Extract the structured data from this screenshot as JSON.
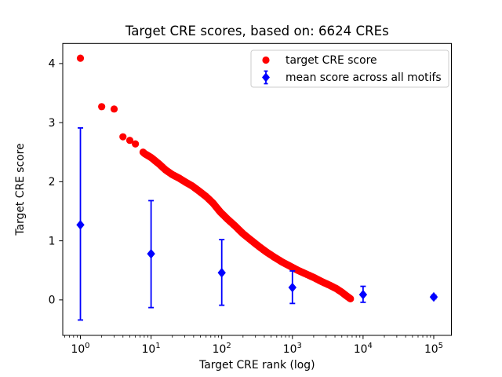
{
  "figure": {
    "background": "#ffffff"
  },
  "chart_data": {
    "type": "scatter",
    "title": "Target CRE scores, based on: 6624 CREs",
    "xlabel": "Target CRE rank (log)",
    "ylabel": "Target CRE score",
    "xscale": "log",
    "xlim_log10": [
      -0.25,
      5.25
    ],
    "ylim": [
      -0.6,
      4.34
    ],
    "grid": false,
    "legend_position": "upper right",
    "yticks": [
      {
        "value": 0,
        "label": "0"
      },
      {
        "value": 1,
        "label": "1"
      },
      {
        "value": 2,
        "label": "2"
      },
      {
        "value": 3,
        "label": "3"
      },
      {
        "value": 4,
        "label": "4"
      }
    ],
    "xticks": [
      {
        "rank": 1,
        "base": "10",
        "exp": "0"
      },
      {
        "rank": 10,
        "base": "10",
        "exp": "1"
      },
      {
        "rank": 100,
        "base": "10",
        "exp": "2"
      },
      {
        "rank": 1000,
        "base": "10",
        "exp": "3"
      },
      {
        "rank": 10000,
        "base": "10",
        "exp": "4"
      },
      {
        "rank": 100000,
        "base": "10",
        "exp": "5"
      }
    ],
    "legend": {
      "items": [
        "target CRE score",
        "mean score across all motifs"
      ]
    },
    "series": [
      {
        "name": "target CRE score",
        "marker": "circle",
        "color": "#ff0000",
        "head_points": [
          [
            1,
            4.09
          ],
          [
            2,
            3.27
          ],
          [
            3,
            3.23
          ],
          [
            4,
            2.76
          ],
          [
            5,
            2.7
          ],
          [
            6,
            2.64
          ]
        ],
        "curve_anchors": [
          [
            7.7,
            2.5
          ],
          [
            8,
            2.48
          ],
          [
            10,
            2.41
          ],
          [
            13,
            2.3
          ],
          [
            16,
            2.2
          ],
          [
            20,
            2.12
          ],
          [
            25,
            2.06
          ],
          [
            30,
            2.0
          ],
          [
            38,
            1.93
          ],
          [
            48,
            1.84
          ],
          [
            60,
            1.75
          ],
          [
            75,
            1.64
          ],
          [
            95,
            1.49
          ],
          [
            120,
            1.37
          ],
          [
            155,
            1.25
          ],
          [
            200,
            1.12
          ],
          [
            260,
            1.01
          ],
          [
            340,
            0.9
          ],
          [
            430,
            0.81
          ],
          [
            560,
            0.72
          ],
          [
            720,
            0.64
          ],
          [
            930,
            0.57
          ],
          [
            1200,
            0.5
          ],
          [
            1550,
            0.44
          ],
          [
            2000,
            0.38
          ],
          [
            2600,
            0.31
          ],
          [
            3350,
            0.25
          ],
          [
            4200,
            0.19
          ],
          [
            5000,
            0.13
          ],
          [
            5800,
            0.07
          ],
          [
            6624,
            0.02
          ]
        ],
        "n_points_total": 6624
      },
      {
        "name": "mean score across all motifs",
        "marker": "diamond",
        "color": "#0000ff",
        "points": [
          {
            "rank": 1,
            "mean": 1.27,
            "lo": -0.34,
            "hi": 2.91
          },
          {
            "rank": 10,
            "mean": 0.78,
            "lo": -0.13,
            "hi": 1.68
          },
          {
            "rank": 100,
            "mean": 0.46,
            "lo": -0.09,
            "hi": 1.02
          },
          {
            "rank": 1000,
            "mean": 0.21,
            "lo": -0.06,
            "hi": 0.49
          },
          {
            "rank": 10000,
            "mean": 0.09,
            "lo": -0.04,
            "hi": 0.23
          },
          {
            "rank": 100000,
            "mean": 0.05,
            "lo": 0.02,
            "hi": 0.08
          }
        ]
      }
    ]
  }
}
